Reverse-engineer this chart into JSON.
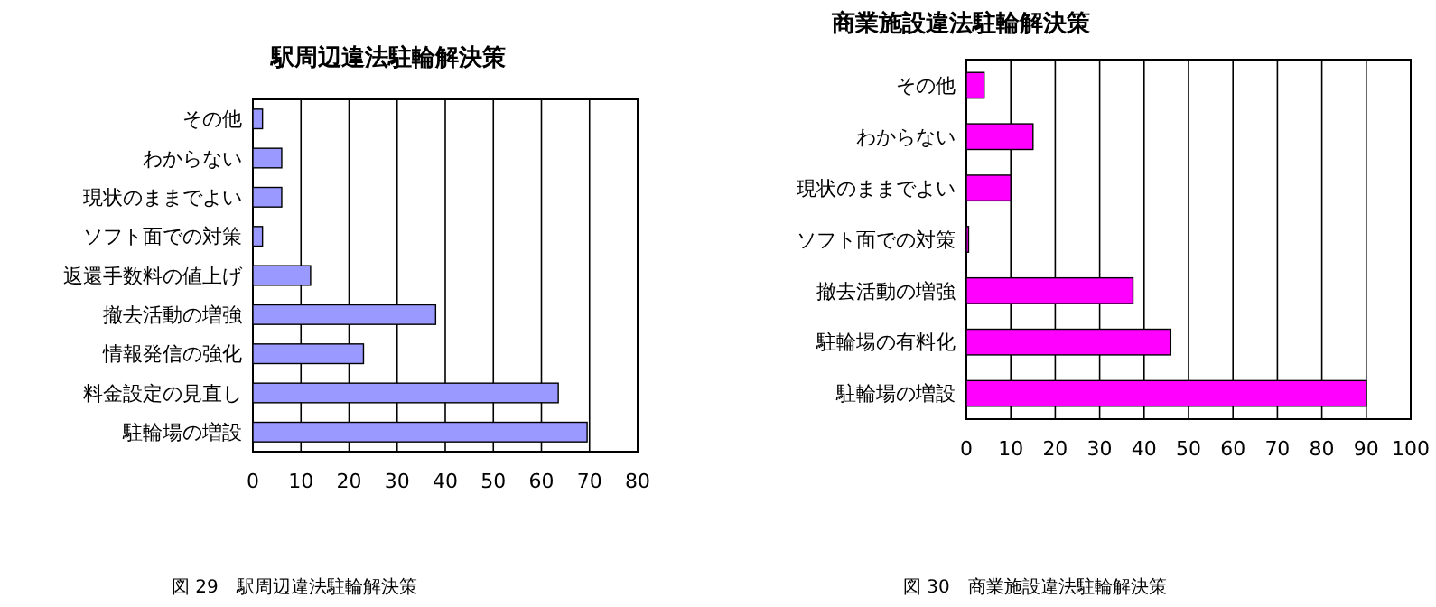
{
  "chart_data": [
    {
      "type": "bar",
      "orientation": "horizontal",
      "title": "駅周辺違法駐輪解決策",
      "categories": [
        "その他",
        "わからない",
        "現状のままでよい",
        "ソフト面での対策",
        "返還手数料の値上げ",
        "撤去活動の増強",
        "情報発信の強化",
        "料金設定の見直し",
        "駐輪場の増設"
      ],
      "values": [
        2,
        6,
        6,
        2,
        12,
        38,
        23,
        63.5,
        69.5
      ],
      "color": "#9999ff",
      "xlim": [
        0,
        80
      ],
      "xticks": [
        0,
        10,
        20,
        30,
        40,
        50,
        60,
        70,
        80
      ],
      "grid": "x",
      "annotations": [
        "図 29　駅周辺違法駐輪解決策"
      ]
    },
    {
      "type": "bar",
      "orientation": "horizontal",
      "title": "商業施設違法駐輪解決策",
      "categories": [
        "その他",
        "わからない",
        "現状のままでよい",
        "ソフト面での対策",
        "撤去活動の増強",
        "駐輪場の有料化",
        "駐輪場の増設"
      ],
      "values": [
        4,
        15,
        10,
        0.5,
        37.5,
        46,
        90
      ],
      "color": "#ff00ff",
      "xlim": [
        0,
        100
      ],
      "xticks": [
        0,
        10,
        20,
        30,
        40,
        50,
        60,
        70,
        80,
        90,
        100
      ],
      "grid": "x",
      "annotations": [
        "図 30　商業施設違法駐輪解決策"
      ]
    }
  ]
}
